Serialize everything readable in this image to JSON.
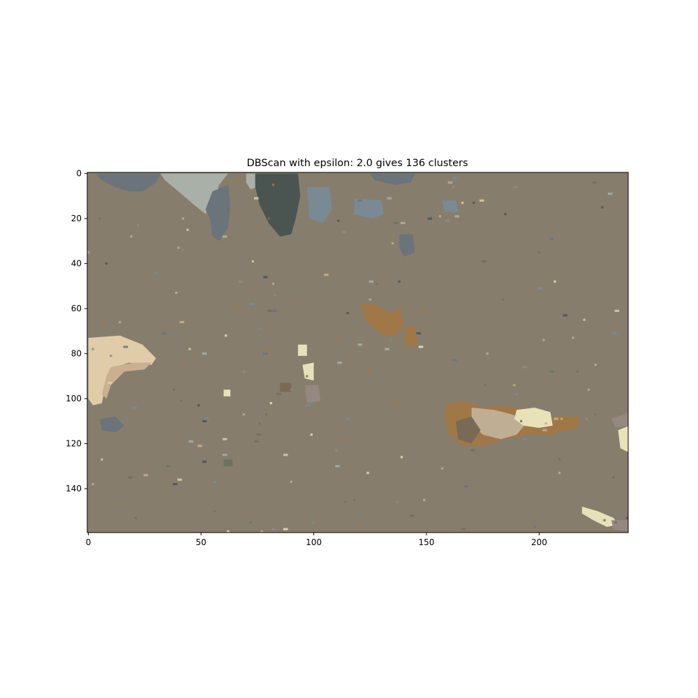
{
  "chart_data": {
    "type": "heatmap",
    "title": "DBScan with epsilon: 2.0 gives 136 clusters",
    "xlabel": "",
    "ylabel": "",
    "xlim": [
      -0.5,
      239.5
    ],
    "ylim": [
      159.5,
      -0.5
    ],
    "grid": false,
    "legend": "none",
    "x_ticks": [
      0,
      50,
      100,
      150,
      200
    ],
    "y_ticks": [
      0,
      20,
      40,
      60,
      80,
      100,
      120,
      140
    ],
    "background_color": "#877d6d",
    "palette": {
      "tan": "#e0cca8",
      "tan_mid": "#c8b090",
      "pale_gray": "#a9b0a8",
      "slate": "#6a747a",
      "slate_dark": "#4a5552",
      "gray_blue": "#7a8a94",
      "rust": "#a07848",
      "brown_dark": "#7a6a55",
      "cream": "#e8e2b8",
      "olive": "#6e7260",
      "light_beige": "#c0ae94",
      "mauve": "#948880"
    },
    "regions": [
      {
        "label": "pale-gray-top",
        "color": "pale_gray",
        "points": [
          [
            32,
            0
          ],
          [
            62,
            0
          ],
          [
            58,
            5
          ],
          [
            56,
            12
          ],
          [
            52,
            18
          ],
          [
            47,
            14
          ],
          [
            40,
            8
          ],
          [
            34,
            3
          ]
        ]
      },
      {
        "label": "pale-gray-top-right",
        "color": "pale_gray",
        "points": [
          [
            70,
            0
          ],
          [
            76,
            0
          ],
          [
            75,
            6
          ],
          [
            72,
            7
          ],
          [
            70,
            4
          ]
        ]
      },
      {
        "label": "slate-top-left",
        "color": "slate",
        "points": [
          [
            3,
            0
          ],
          [
            32,
            0
          ],
          [
            30,
            4
          ],
          [
            24,
            8
          ],
          [
            18,
            8
          ],
          [
            12,
            6
          ],
          [
            6,
            3
          ]
        ]
      },
      {
        "label": "slate-top-arm",
        "color": "slate",
        "points": [
          [
            55,
            8
          ],
          [
            62,
            5
          ],
          [
            63,
            14
          ],
          [
            62,
            24
          ],
          [
            58,
            30
          ],
          [
            55,
            28
          ],
          [
            54,
            20
          ],
          [
            52,
            16
          ]
        ]
      },
      {
        "label": "slate-top-right",
        "color": "slate_dark",
        "points": [
          [
            74,
            0
          ],
          [
            93,
            0
          ],
          [
            94,
            10
          ],
          [
            92,
            20
          ],
          [
            90,
            27
          ],
          [
            85,
            28
          ],
          [
            80,
            22
          ],
          [
            76,
            14
          ],
          [
            74,
            6
          ]
        ]
      },
      {
        "label": "gray-top-right",
        "color": "gray_blue",
        "points": [
          [
            97,
            6
          ],
          [
            107,
            6
          ],
          [
            108,
            16
          ],
          [
            104,
            22
          ],
          [
            98,
            20
          ]
        ]
      },
      {
        "label": "slate-top-blob",
        "color": "slate",
        "points": [
          [
            125,
            0
          ],
          [
            145,
            0
          ],
          [
            143,
            4
          ],
          [
            136,
            5
          ],
          [
            127,
            3
          ]
        ]
      },
      {
        "label": "ring-1",
        "color": "gray_blue",
        "points": [
          [
            118,
            11
          ],
          [
            130,
            12
          ],
          [
            131,
            18
          ],
          [
            126,
            20
          ],
          [
            118,
            18
          ]
        ]
      },
      {
        "label": "ring-2",
        "color": "gray_blue",
        "points": [
          [
            157,
            12
          ],
          [
            163,
            12
          ],
          [
            164,
            17
          ],
          [
            158,
            17
          ]
        ]
      },
      {
        "label": "gray-small",
        "color": "slate",
        "points": [
          [
            138,
            27
          ],
          [
            144,
            27
          ],
          [
            145,
            35
          ],
          [
            140,
            37
          ],
          [
            138,
            33
          ]
        ]
      },
      {
        "label": "tan-crescent",
        "color": "tan",
        "points": [
          [
            0,
            73
          ],
          [
            14,
            72
          ],
          [
            24,
            76
          ],
          [
            30,
            82
          ],
          [
            28,
            85
          ],
          [
            18,
            84
          ],
          [
            12,
            86
          ],
          [
            8,
            92
          ],
          [
            6,
            102
          ],
          [
            2,
            103
          ],
          [
            0,
            100
          ]
        ]
      },
      {
        "label": "tan-crescent-inner",
        "color": "tan_mid",
        "points": [
          [
            10,
            86
          ],
          [
            20,
            84
          ],
          [
            28,
            84
          ],
          [
            25,
            87
          ],
          [
            16,
            88
          ],
          [
            10,
            94
          ],
          [
            8,
            100
          ],
          [
            6,
            98
          ],
          [
            8,
            90
          ]
        ]
      },
      {
        "label": "rust-cluster-mid",
        "color": "rust",
        "points": [
          [
            121,
            58
          ],
          [
            127,
            58
          ],
          [
            134,
            62
          ],
          [
            138,
            60
          ],
          [
            140,
            66
          ],
          [
            137,
            72
          ],
          [
            131,
            72
          ],
          [
            126,
            68
          ],
          [
            122,
            64
          ]
        ]
      },
      {
        "label": "rust-cluster-mid-2",
        "color": "rust",
        "points": [
          [
            140,
            68
          ],
          [
            145,
            68
          ],
          [
            146,
            76
          ],
          [
            141,
            77
          ]
        ]
      },
      {
        "label": "rust-big",
        "color": "rust",
        "points": [
          [
            159,
            102
          ],
          [
            167,
            101
          ],
          [
            175,
            104
          ],
          [
            183,
            103
          ],
          [
            193,
            105
          ],
          [
            205,
            108
          ],
          [
            218,
            108
          ],
          [
            217,
            113
          ],
          [
            205,
            116
          ],
          [
            195,
            116
          ],
          [
            185,
            118
          ],
          [
            175,
            121
          ],
          [
            166,
            121
          ],
          [
            160,
            116
          ],
          [
            158,
            108
          ]
        ]
      },
      {
        "label": "beige-big",
        "color": "light_beige",
        "points": [
          [
            170,
            104
          ],
          [
            180,
            105
          ],
          [
            188,
            107
          ],
          [
            195,
            110
          ],
          [
            190,
            116
          ],
          [
            183,
            118
          ],
          [
            175,
            116
          ],
          [
            170,
            111
          ]
        ]
      },
      {
        "label": "cream-big",
        "color": "cream",
        "points": [
          [
            190,
            105
          ],
          [
            198,
            104
          ],
          [
            205,
            106
          ],
          [
            206,
            112
          ],
          [
            200,
            113
          ],
          [
            193,
            112
          ],
          [
            189,
            109
          ]
        ]
      },
      {
        "label": "brown-big",
        "color": "brown_dark",
        "points": [
          [
            163,
            110
          ],
          [
            170,
            108
          ],
          [
            174,
            114
          ],
          [
            170,
            120
          ],
          [
            164,
            118
          ]
        ]
      },
      {
        "label": "cream-right-edge",
        "color": "cream",
        "points": [
          [
            235,
            114
          ],
          [
            240,
            112
          ],
          [
            240,
            124
          ],
          [
            236,
            122
          ]
        ]
      },
      {
        "label": "mauve-right-edge",
        "color": "mauve",
        "points": [
          [
            232,
            109
          ],
          [
            240,
            106
          ],
          [
            240,
            112
          ],
          [
            234,
            113
          ]
        ]
      },
      {
        "label": "cream-bottom-right",
        "color": "cream",
        "points": [
          [
            219,
            148
          ],
          [
            226,
            150
          ],
          [
            233,
            153
          ],
          [
            235,
            156
          ],
          [
            230,
            157
          ],
          [
            224,
            154
          ],
          [
            219,
            151
          ]
        ]
      },
      {
        "label": "mauve-bottom-right",
        "color": "mauve",
        "points": [
          [
            232,
            154
          ],
          [
            240,
            154
          ],
          [
            240,
            159
          ],
          [
            233,
            158
          ]
        ]
      },
      {
        "label": "slate-left-mid",
        "color": "slate",
        "points": [
          [
            5,
            109
          ],
          [
            12,
            108
          ],
          [
            16,
            112
          ],
          [
            12,
            115
          ],
          [
            6,
            114
          ]
        ]
      },
      {
        "label": "cream-center",
        "color": "cream",
        "points": [
          [
            95,
            85
          ],
          [
            100,
            84
          ],
          [
            100,
            92
          ],
          [
            96,
            91
          ]
        ]
      },
      {
        "label": "cream-center-2",
        "color": "cream",
        "points": [
          [
            93,
            76
          ],
          [
            97,
            76
          ],
          [
            97,
            81
          ],
          [
            93,
            81
          ]
        ]
      },
      {
        "label": "cream-center-3",
        "color": "cream",
        "points": [
          [
            60,
            96
          ],
          [
            63,
            96
          ],
          [
            63,
            99
          ],
          [
            60,
            99
          ]
        ]
      },
      {
        "label": "brown-center",
        "color": "brown_dark",
        "points": [
          [
            85,
            93
          ],
          [
            90,
            93
          ],
          [
            90,
            97
          ],
          [
            85,
            97
          ]
        ]
      },
      {
        "label": "mauve-center",
        "color": "mauve",
        "points": [
          [
            96,
            94
          ],
          [
            102,
            94
          ],
          [
            103,
            101
          ],
          [
            97,
            102
          ]
        ]
      },
      {
        "label": "olive-small",
        "color": "olive",
        "points": [
          [
            60,
            127
          ],
          [
            64,
            127
          ],
          [
            64,
            130
          ],
          [
            60,
            130
          ]
        ]
      }
    ]
  }
}
